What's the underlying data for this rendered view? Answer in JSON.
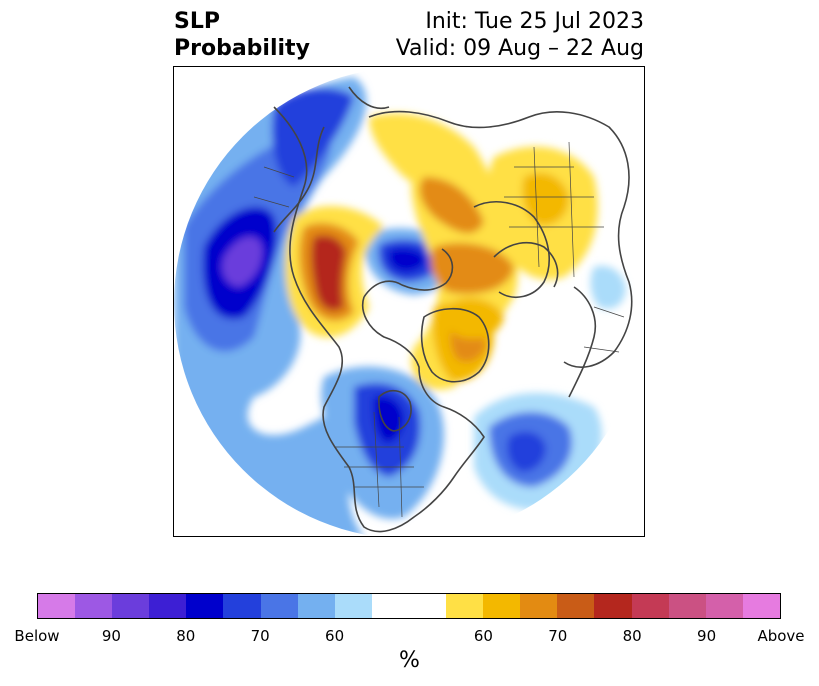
{
  "title": {
    "line1": "SLP",
    "line2": "Probability"
  },
  "subtitle": {
    "init": "Init: Tue 25 Jul 2023",
    "valid": "Valid: 09 Aug – 22 Aug"
  },
  "colorbar": {
    "colors": [
      "#d67ae8",
      "#9d58e4",
      "#6b3ddc",
      "#3d1fd4",
      "#0000cc",
      "#2340dc",
      "#4a75e6",
      "#74b0f0",
      "#aadcfa",
      "#ffffff",
      "#ffffff",
      "#ffe045",
      "#f3b800",
      "#e38b12",
      "#c95c17",
      "#b4271e",
      "#c43a55",
      "#cb5183",
      "#d460aa",
      "#e67be0"
    ],
    "tick_labels": [
      "Below",
      "90",
      "80",
      "70",
      "60",
      "60",
      "70",
      "80",
      "90",
      "Above"
    ],
    "unit": "%"
  },
  "map": {
    "projection": "north-polar-stereographic",
    "ocean_background": "#ffffff",
    "coastline_color": "#444444"
  }
}
